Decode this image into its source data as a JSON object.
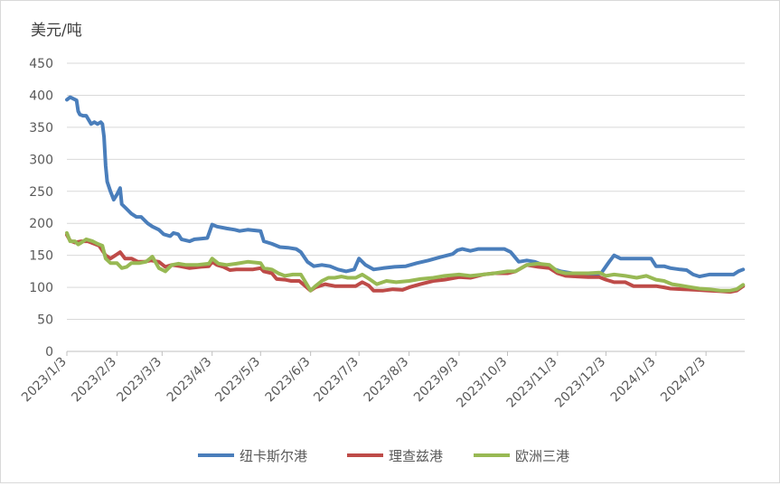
{
  "chart_data": {
    "type": "line",
    "title": "",
    "ylabel": "美元/吨",
    "xlabel": "",
    "ylim": [
      0,
      450
    ],
    "yticks": [
      0,
      50,
      100,
      150,
      200,
      250,
      300,
      350,
      400,
      450
    ],
    "xticks": [
      "2023/1/3",
      "2023/2/3",
      "2023/3/3",
      "2023/4/3",
      "2023/5/3",
      "2023/6/3",
      "2023/7/3",
      "2023/8/3",
      "2023/9/3",
      "2023/10/3",
      "2023/11/3",
      "2023/12/3",
      "2024/1/3",
      "2024/2/3"
    ],
    "grid": true,
    "legend_position": "bottom",
    "colors": {
      "纽卡斯尔港": "#4a7ebb",
      "理查兹港": "#be4b48",
      "欧洲三港": "#98b954",
      "grid": "#d9d9d9",
      "axis_text": "#595959"
    },
    "series": [
      {
        "name": "纽卡斯尔港",
        "points": [
          [
            "2023/1/3",
            393
          ],
          [
            "2023/1/5",
            397
          ],
          [
            "2023/1/9",
            392
          ],
          [
            "2023/1/10",
            375
          ],
          [
            "2023/1/11",
            370
          ],
          [
            "2023/1/13",
            368
          ],
          [
            "2023/1/15",
            368
          ],
          [
            "2023/1/18",
            355
          ],
          [
            "2023/1/20",
            358
          ],
          [
            "2023/1/22",
            355
          ],
          [
            "2023/1/24",
            358
          ],
          [
            "2023/1/25",
            355
          ],
          [
            "2023/1/26",
            335
          ],
          [
            "2023/1/27",
            290
          ],
          [
            "2023/1/28",
            265
          ],
          [
            "2023/1/30",
            250
          ],
          [
            "2023/2/1",
            237
          ],
          [
            "2023/2/3",
            245
          ],
          [
            "2023/2/5",
            255
          ],
          [
            "2023/2/6",
            230
          ],
          [
            "2023/2/8",
            225
          ],
          [
            "2023/2/12",
            215
          ],
          [
            "2023/2/15",
            210
          ],
          [
            "2023/2/18",
            210
          ],
          [
            "2023/2/22",
            200
          ],
          [
            "2023/2/25",
            195
          ],
          [
            "2023/3/1",
            190
          ],
          [
            "2023/3/4",
            183
          ],
          [
            "2023/3/8",
            180
          ],
          [
            "2023/3/10",
            185
          ],
          [
            "2023/3/13",
            183
          ],
          [
            "2023/3/15",
            175
          ],
          [
            "2023/3/20",
            172
          ],
          [
            "2023/3/23",
            175
          ],
          [
            "2023/3/27",
            176
          ],
          [
            "2023/3/31",
            177
          ],
          [
            "2023/4/3",
            198
          ],
          [
            "2023/4/6",
            195
          ],
          [
            "2023/4/12",
            192
          ],
          [
            "2023/4/17",
            190
          ],
          [
            "2023/4/20",
            188
          ],
          [
            "2023/4/25",
            190
          ],
          [
            "2023/5/3",
            188
          ],
          [
            "2023/5/5",
            172
          ],
          [
            "2023/5/10",
            168
          ],
          [
            "2023/5/15",
            163
          ],
          [
            "2023/5/20",
            162
          ],
          [
            "2023/5/25",
            160
          ],
          [
            "2023/5/28",
            155
          ],
          [
            "2023/6/1",
            140
          ],
          [
            "2023/6/5",
            133
          ],
          [
            "2023/6/10",
            135
          ],
          [
            "2023/6/15",
            133
          ],
          [
            "2023/6/20",
            128
          ],
          [
            "2023/6/25",
            125
          ],
          [
            "2023/6/30",
            128
          ],
          [
            "2023/7/3",
            145
          ],
          [
            "2023/7/7",
            135
          ],
          [
            "2023/7/12",
            128
          ],
          [
            "2023/7/18",
            130
          ],
          [
            "2023/7/25",
            132
          ],
          [
            "2023/8/1",
            133
          ],
          [
            "2023/8/8",
            138
          ],
          [
            "2023/8/15",
            142
          ],
          [
            "2023/8/22",
            147
          ],
          [
            "2023/8/30",
            152
          ],
          [
            "2023/9/2",
            158
          ],
          [
            "2023/9/5",
            160
          ],
          [
            "2023/9/10",
            157
          ],
          [
            "2023/9/15",
            160
          ],
          [
            "2023/9/20",
            160
          ],
          [
            "2023/9/25",
            160
          ],
          [
            "2023/10/1",
            160
          ],
          [
            "2023/10/5",
            155
          ],
          [
            "2023/10/10",
            140
          ],
          [
            "2023/10/15",
            142
          ],
          [
            "2023/10/20",
            140
          ],
          [
            "2023/10/25",
            135
          ],
          [
            "2023/10/30",
            130
          ],
          [
            "2023/11/5",
            125
          ],
          [
            "2023/11/10",
            123
          ],
          [
            "2023/11/15",
            121
          ],
          [
            "2023/11/20",
            120
          ],
          [
            "2023/11/25",
            120
          ],
          [
            "2023/11/30",
            122
          ],
          [
            "2023/12/5",
            140
          ],
          [
            "2023/12/8",
            150
          ],
          [
            "2023/12/12",
            145
          ],
          [
            "2023/12/18",
            145
          ],
          [
            "2023/12/25",
            145
          ],
          [
            "2023/12/31",
            145
          ],
          [
            "2024/1/3",
            133
          ],
          [
            "2024/1/8",
            133
          ],
          [
            "2024/1/12",
            130
          ],
          [
            "2024/1/18",
            128
          ],
          [
            "2024/1/22",
            127
          ],
          [
            "2024/1/26",
            120
          ],
          [
            "2024/1/30",
            117
          ],
          [
            "2024/2/5",
            120
          ],
          [
            "2024/2/10",
            120
          ],
          [
            "2024/2/15",
            120
          ],
          [
            "2024/2/20",
            120
          ],
          [
            "2024/2/23",
            125
          ],
          [
            "2024/2/26",
            128
          ]
        ]
      },
      {
        "name": "理查兹港",
        "points": [
          [
            "2023/1/3",
            182
          ],
          [
            "2023/1/5",
            173
          ],
          [
            "2023/1/8",
            170
          ],
          [
            "2023/1/12",
            172
          ],
          [
            "2023/1/16",
            172
          ],
          [
            "2023/1/20",
            168
          ],
          [
            "2023/1/23",
            165
          ],
          [
            "2023/1/27",
            150
          ],
          [
            "2023/1/30",
            145
          ],
          [
            "2023/2/2",
            150
          ],
          [
            "2023/2/5",
            155
          ],
          [
            "2023/2/8",
            145
          ],
          [
            "2023/2/12",
            145
          ],
          [
            "2023/2/16",
            140
          ],
          [
            "2023/2/20",
            140
          ],
          [
            "2023/2/24",
            142
          ],
          [
            "2023/3/1",
            140
          ],
          [
            "2023/3/5",
            132
          ],
          [
            "2023/3/9",
            135
          ],
          [
            "2023/3/14",
            133
          ],
          [
            "2023/3/20",
            130
          ],
          [
            "2023/3/27",
            132
          ],
          [
            "2023/4/1",
            133
          ],
          [
            "2023/4/3",
            140
          ],
          [
            "2023/4/6",
            135
          ],
          [
            "2023/4/10",
            132
          ],
          [
            "2023/4/14",
            127
          ],
          [
            "2023/4/18",
            128
          ],
          [
            "2023/4/22",
            128
          ],
          [
            "2023/4/28",
            128
          ],
          [
            "2023/5/3",
            130
          ],
          [
            "2023/5/5",
            125
          ],
          [
            "2023/5/10",
            122
          ],
          [
            "2023/5/13",
            113
          ],
          [
            "2023/5/18",
            112
          ],
          [
            "2023/5/22",
            110
          ],
          [
            "2023/5/27",
            110
          ],
          [
            "2023/6/3",
            95
          ],
          [
            "2023/6/6",
            100
          ],
          [
            "2023/6/12",
            105
          ],
          [
            "2023/6/18",
            102
          ],
          [
            "2023/6/24",
            102
          ],
          [
            "2023/7/1",
            102
          ],
          [
            "2023/7/5",
            108
          ],
          [
            "2023/7/9",
            103
          ],
          [
            "2023/7/12",
            95
          ],
          [
            "2023/7/18",
            95
          ],
          [
            "2023/7/24",
            97
          ],
          [
            "2023/7/30",
            96
          ],
          [
            "2023/8/3",
            100
          ],
          [
            "2023/8/10",
            105
          ],
          [
            "2023/8/18",
            110
          ],
          [
            "2023/8/25",
            112
          ],
          [
            "2023/9/3",
            116
          ],
          [
            "2023/9/10",
            115
          ],
          [
            "2023/9/18",
            120
          ],
          [
            "2023/9/25",
            122
          ],
          [
            "2023/10/3",
            122
          ],
          [
            "2023/10/8",
            125
          ],
          [
            "2023/10/15",
            135
          ],
          [
            "2023/10/22",
            132
          ],
          [
            "2023/10/29",
            130
          ],
          [
            "2023/11/3",
            122
          ],
          [
            "2023/11/8",
            118
          ],
          [
            "2023/11/15",
            117
          ],
          [
            "2023/11/22",
            116
          ],
          [
            "2023/11/29",
            116
          ],
          [
            "2023/12/3",
            112
          ],
          [
            "2023/12/8",
            108
          ],
          [
            "2023/12/15",
            108
          ],
          [
            "2023/12/20",
            102
          ],
          [
            "2023/12/28",
            102
          ],
          [
            "2024/1/3",
            102
          ],
          [
            "2024/1/8",
            100
          ],
          [
            "2024/1/12",
            98
          ],
          [
            "2024/1/20",
            97
          ],
          [
            "2024/1/28",
            96
          ],
          [
            "2024/2/5",
            95
          ],
          [
            "2024/2/12",
            94
          ],
          [
            "2024/2/18",
            93
          ],
          [
            "2024/2/22",
            95
          ],
          [
            "2024/2/26",
            102
          ]
        ]
      },
      {
        "name": "欧洲三港",
        "points": [
          [
            "2023/1/3",
            185
          ],
          [
            "2023/1/5",
            172
          ],
          [
            "2023/1/8",
            172
          ],
          [
            "2023/1/10",
            167
          ],
          [
            "2023/1/12",
            170
          ],
          [
            "2023/1/15",
            175
          ],
          [
            "2023/1/19",
            172
          ],
          [
            "2023/1/22",
            168
          ],
          [
            "2023/1/25",
            165
          ],
          [
            "2023/1/27",
            145
          ],
          [
            "2023/1/30",
            138
          ],
          [
            "2023/2/3",
            138
          ],
          [
            "2023/2/6",
            130
          ],
          [
            "2023/2/9",
            132
          ],
          [
            "2023/2/12",
            138
          ],
          [
            "2023/2/17",
            138
          ],
          [
            "2023/2/21",
            140
          ],
          [
            "2023/2/25",
            148
          ],
          [
            "2023/3/1",
            130
          ],
          [
            "2023/3/5",
            125
          ],
          [
            "2023/3/9",
            135
          ],
          [
            "2023/3/13",
            137
          ],
          [
            "2023/3/18",
            135
          ],
          [
            "2023/3/25",
            135
          ],
          [
            "2023/4/1",
            137
          ],
          [
            "2023/4/3",
            145
          ],
          [
            "2023/4/7",
            137
          ],
          [
            "2023/4/12",
            135
          ],
          [
            "2023/4/18",
            137
          ],
          [
            "2023/4/25",
            140
          ],
          [
            "2023/5/3",
            138
          ],
          [
            "2023/5/5",
            130
          ],
          [
            "2023/5/10",
            128
          ],
          [
            "2023/5/14",
            122
          ],
          [
            "2023/5/18",
            118
          ],
          [
            "2023/5/23",
            120
          ],
          [
            "2023/5/28",
            120
          ],
          [
            "2023/6/3",
            95
          ],
          [
            "2023/6/6",
            102
          ],
          [
            "2023/6/10",
            110
          ],
          [
            "2023/6/14",
            115
          ],
          [
            "2023/6/18",
            115
          ],
          [
            "2023/6/22",
            117
          ],
          [
            "2023/6/26",
            115
          ],
          [
            "2023/7/1",
            115
          ],
          [
            "2023/7/5",
            120
          ],
          [
            "2023/7/10",
            112
          ],
          [
            "2023/7/14",
            105
          ],
          [
            "2023/7/20",
            110
          ],
          [
            "2023/7/26",
            108
          ],
          [
            "2023/8/3",
            110
          ],
          [
            "2023/8/10",
            113
          ],
          [
            "2023/8/18",
            115
          ],
          [
            "2023/8/25",
            118
          ],
          [
            "2023/9/3",
            120
          ],
          [
            "2023/9/10",
            118
          ],
          [
            "2023/9/18",
            120
          ],
          [
            "2023/9/25",
            122
          ],
          [
            "2023/10/3",
            125
          ],
          [
            "2023/10/8",
            125
          ],
          [
            "2023/10/15",
            135
          ],
          [
            "2023/10/22",
            137
          ],
          [
            "2023/10/29",
            135
          ],
          [
            "2023/11/3",
            125
          ],
          [
            "2023/11/8",
            122
          ],
          [
            "2023/11/15",
            122
          ],
          [
            "2023/11/22",
            122
          ],
          [
            "2023/11/29",
            123
          ],
          [
            "2023/12/3",
            118
          ],
          [
            "2023/12/8",
            120
          ],
          [
            "2023/12/15",
            118
          ],
          [
            "2023/12/22",
            115
          ],
          [
            "2023/12/28",
            118
          ],
          [
            "2024/1/3",
            112
          ],
          [
            "2024/1/8",
            110
          ],
          [
            "2024/1/13",
            105
          ],
          [
            "2024/1/18",
            103
          ],
          [
            "2024/1/25",
            100
          ],
          [
            "2024/1/30",
            98
          ],
          [
            "2024/2/5",
            97
          ],
          [
            "2024/2/12",
            95
          ],
          [
            "2024/2/18",
            95
          ],
          [
            "2024/2/22",
            97
          ],
          [
            "2024/2/26",
            104
          ]
        ]
      }
    ]
  }
}
